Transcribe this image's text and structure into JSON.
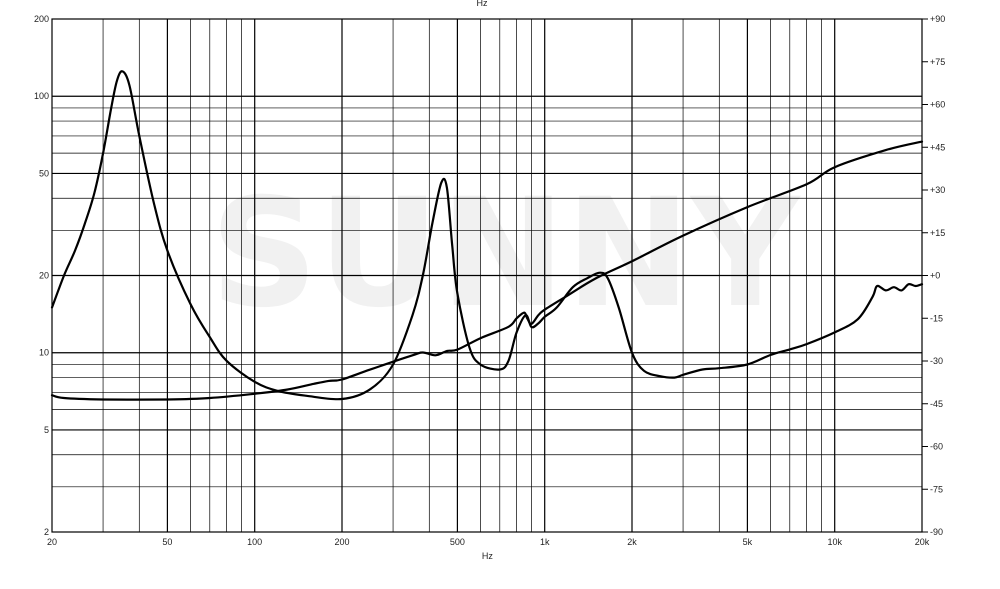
{
  "chart_data": {
    "type": "line",
    "xlabel": "Hz",
    "x_scale": "log",
    "xlim": [
      20,
      20000
    ],
    "x_ticks": [
      {
        "value": 20,
        "label": "20"
      },
      {
        "value": 50,
        "label": "50"
      },
      {
        "value": 100,
        "label": "100"
      },
      {
        "value": 200,
        "label": "200"
      },
      {
        "value": 500,
        "label": "500"
      },
      {
        "value": 1000,
        "label": "1k"
      },
      {
        "value": 2000,
        "label": "2k"
      },
      {
        "value": 5000,
        "label": "5k"
      },
      {
        "value": 10000,
        "label": "10k"
      },
      {
        "value": 20000,
        "label": "20k"
      }
    ],
    "y_left": {
      "scale": "log",
      "lim": [
        2,
        200
      ],
      "ticks": [
        {
          "value": 2,
          "label": "2"
        },
        {
          "value": 5,
          "label": "5"
        },
        {
          "value": 10,
          "label": "10"
        },
        {
          "value": 20,
          "label": "20"
        },
        {
          "value": 50,
          "label": "50"
        },
        {
          "value": 100,
          "label": "100"
        },
        {
          "value": 200,
          "label": "200"
        }
      ]
    },
    "y_right": {
      "scale": "linear",
      "lim": [
        -90,
        90
      ],
      "ticks": [
        {
          "value": 90,
          "label": "+90"
        },
        {
          "value": 75,
          "label": "+75"
        },
        {
          "value": 60,
          "label": "+60"
        },
        {
          "value": 45,
          "label": "+45"
        },
        {
          "value": 30,
          "label": "+30"
        },
        {
          "value": 15,
          "label": "+15"
        },
        {
          "value": 0,
          "label": "+0"
        },
        {
          "value": -15,
          "label": "-15"
        },
        {
          "value": -30,
          "label": "-30"
        },
        {
          "value": -45,
          "label": "-45"
        },
        {
          "value": -60,
          "label": "-60"
        },
        {
          "value": -75,
          "label": "-75"
        },
        {
          "value": -90,
          "label": "-90"
        }
      ]
    },
    "grid": true,
    "top_label": "Hz",
    "series": [
      {
        "axis": "left",
        "x": [
          20,
          22,
          24,
          26,
          28,
          30,
          32,
          33.5,
          35,
          37,
          40,
          45,
          50,
          60,
          70,
          80,
          100,
          120,
          150,
          200,
          250,
          300,
          350,
          380,
          410,
          440,
          460,
          480,
          500,
          550,
          600,
          700,
          750,
          800,
          860,
          900,
          950,
          1000,
          1100,
          1250,
          1400,
          1550,
          1650,
          1800,
          2000,
          2200,
          2500,
          2800,
          3000,
          3500,
          4000,
          5000,
          6000,
          7000,
          8000,
          10000,
          12000,
          13500,
          14000,
          15000,
          16000,
          17000,
          18000,
          19000,
          20000
        ],
        "y": [
          15,
          20,
          25,
          32,
          42,
          60,
          90,
          115,
          125,
          110,
          70,
          38,
          25,
          15.5,
          11.5,
          9.3,
          7.7,
          7.1,
          6.8,
          6.6,
          7.2,
          9,
          14,
          20,
          32,
          46,
          44,
          26,
          17,
          10.5,
          9,
          8.6,
          9.3,
          12,
          14,
          12.6,
          13,
          13.8,
          15,
          18,
          19.5,
          20.5,
          19.5,
          15,
          10,
          8.5,
          8.1,
          8,
          8.2,
          8.6,
          8.7,
          9,
          9.8,
          10.3,
          10.8,
          12,
          13.5,
          16.5,
          18.2,
          17.5,
          18,
          17.5,
          18.5,
          18.2,
          18.5
        ]
      },
      {
        "axis": "right",
        "x": [
          20,
          22,
          30,
          50,
          70,
          100,
          130,
          160,
          180,
          200,
          250,
          350,
          380,
          420,
          460,
          500,
          600,
          750,
          800,
          850,
          870,
          900,
          950,
          1000,
          1200,
          1500,
          2000,
          3000,
          5000,
          8000,
          10000,
          15000,
          20000
        ],
        "y": [
          -42,
          -43,
          -43.5,
          -43.5,
          -43,
          -41.5,
          -40,
          -38,
          -37,
          -36.5,
          -33,
          -28,
          -27,
          -28,
          -26.5,
          -26,
          -22,
          -18,
          -15,
          -13,
          -15,
          -17,
          -14,
          -12,
          -7,
          -1,
          5,
          14,
          24,
          32,
          38,
          44,
          47
        ]
      }
    ]
  }
}
